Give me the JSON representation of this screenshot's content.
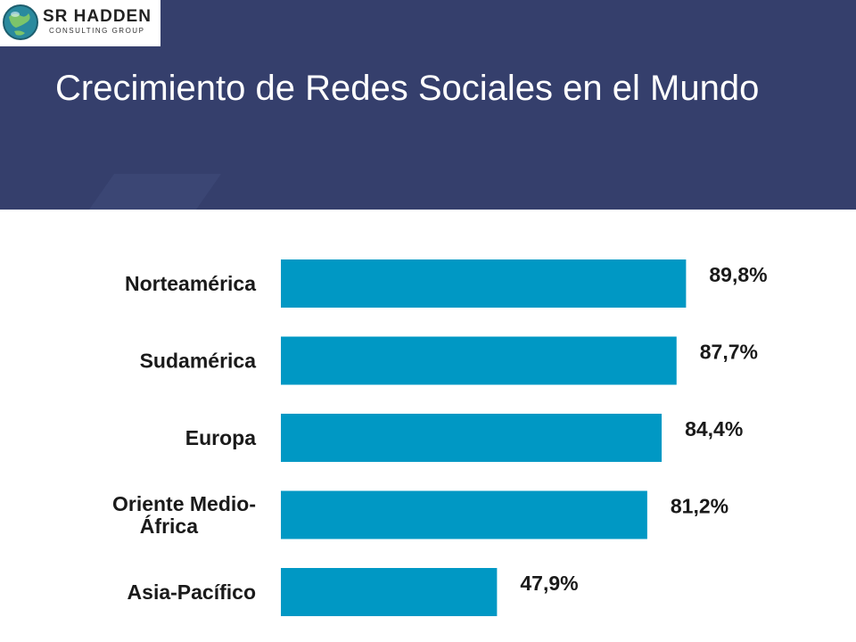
{
  "header": {
    "logo_name": "SR HADDEN",
    "logo_subtitle": "CONSULTING GROUP",
    "title": "Crecimiento de Redes Sociales en el Mundo"
  },
  "colors": {
    "header_bg": "#353f6c",
    "bar": "#0098c4",
    "text": "#1a1a1a"
  },
  "chart_data": {
    "type": "bar",
    "orientation": "horizontal",
    "categories": [
      "Norteamérica",
      "Sudamérica",
      "Europa",
      "Oriente Medio-África",
      "Asia-Pacífico"
    ],
    "category_lines": [
      [
        "Norteamérica"
      ],
      [
        "Sudamérica"
      ],
      [
        "Europa"
      ],
      [
        "Oriente Medio-",
        "África"
      ],
      [
        "Asia-Pacífico"
      ]
    ],
    "values": [
      89.8,
      87.7,
      84.4,
      81.2,
      47.9
    ],
    "value_labels": [
      "89,8%",
      "87,7%",
      "84,4%",
      "81,2%",
      "47,9%"
    ],
    "title": "",
    "xlabel": "",
    "ylabel": "",
    "grid": false,
    "legend": "none"
  }
}
